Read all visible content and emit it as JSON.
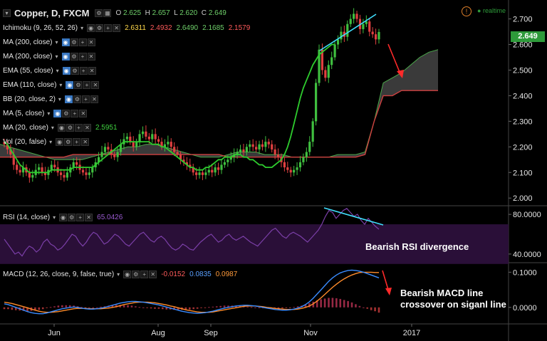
{
  "header": {
    "title": "Copper, D, FXCM",
    "open_label": "O",
    "open": "2.625",
    "high_label": "H",
    "high": "2.657",
    "low_label": "L",
    "low": "2.620",
    "close_label": "C",
    "close": "2.649",
    "realtime": "realtime",
    "last_price": "2.649"
  },
  "indicators": [
    {
      "label": "Ichimoku (9, 26, 52, 26)",
      "values": [
        "2.6311",
        "2.4932",
        "2.6490",
        "2.1685",
        "2.1579"
      ],
      "value_colors": [
        "#ffd84a",
        "#ff5b5b",
        "#6fd06a",
        "#6fd06a",
        "#ff5b5b"
      ]
    },
    {
      "label": "MA (200, close)",
      "values": []
    },
    {
      "label": "MA (200, close)",
      "values": []
    },
    {
      "label": "EMA (55, close)",
      "values": []
    },
    {
      "label": "EMA (110, close)",
      "values": []
    },
    {
      "label": "BB (20, close, 2)",
      "values": []
    },
    {
      "label": "MA (5, close)",
      "values": []
    },
    {
      "label": "MA (20, close)",
      "values": [
        "2.5951"
      ],
      "value_colors": [
        "#3fd23f"
      ]
    },
    {
      "label": "Vol (20, false)",
      "values": []
    }
  ],
  "rsi": {
    "label": "RSI (14, close)",
    "value": "65.0426"
  },
  "macd": {
    "label": "MACD (12, 26, close, 9, false, true)",
    "values": [
      "-0.0152",
      "0.0835",
      "0.0987"
    ],
    "value_colors": [
      "#ff5b5b",
      "#5aa0ff",
      "#ff9a3a"
    ]
  },
  "annotations": {
    "rsi_note": "Bearish RSI divergence",
    "macd_note_line1": "Bearish MACD line",
    "macd_note_line2": "crossover on siganl line"
  },
  "colors": {
    "up": "#3fbf3f",
    "down": "#e04040",
    "ma20": "#2ecc2e",
    "rsi": "#7b3fa8",
    "rsi_band": "#2a0f38",
    "macd": "#3a8cff",
    "signal": "#ff8c2a",
    "cloud": "#6a6a6a",
    "trend": "#40e0ff",
    "arrow": "#ff2a2a"
  },
  "chart_data": [
    {
      "type": "candlestick",
      "title": "Copper, D, FXCM",
      "x_ticks": [
        "Jun",
        "Aug",
        "Sep",
        "Nov",
        "2017"
      ],
      "y_ticks": [
        2.0,
        2.1,
        2.2,
        2.3,
        2.4,
        2.5,
        2.6,
        2.7
      ],
      "ylim": [
        1.97,
        2.76
      ],
      "close_series": [
        2.21,
        2.19,
        2.17,
        2.13,
        2.11,
        2.1,
        2.12,
        2.1,
        2.08,
        2.09,
        2.11,
        2.12,
        2.1,
        2.09,
        2.11,
        2.13,
        2.12,
        2.1,
        2.09,
        2.08,
        2.1,
        2.12,
        2.14,
        2.13,
        2.11,
        2.1,
        2.09,
        2.1,
        2.12,
        2.14,
        2.16,
        2.18,
        2.2,
        2.19,
        2.17,
        2.16,
        2.18,
        2.21,
        2.23,
        2.24,
        2.22,
        2.2,
        2.22,
        2.25,
        2.26,
        2.24,
        2.23,
        2.25,
        2.23,
        2.22,
        2.2,
        2.21,
        2.22,
        2.2,
        2.18,
        2.17,
        2.15,
        2.14,
        2.13,
        2.12,
        2.1,
        2.09,
        2.1,
        2.09,
        2.1,
        2.11,
        2.1,
        2.12,
        2.11,
        2.13,
        2.14,
        2.15,
        2.16,
        2.17,
        2.18,
        2.19,
        2.18,
        2.2,
        2.21,
        2.2,
        2.19,
        2.21,
        2.2,
        2.22,
        2.21,
        2.19,
        2.17,
        2.16,
        2.14,
        2.12,
        2.11,
        2.1,
        2.11,
        2.12,
        2.14,
        2.16,
        2.18,
        2.22,
        2.3,
        2.45,
        2.58,
        2.5,
        2.47,
        2.52,
        2.55,
        2.6,
        2.62,
        2.65,
        2.63,
        2.68,
        2.7,
        2.72,
        2.7,
        2.66,
        2.68,
        2.69,
        2.65,
        2.64,
        2.62,
        2.649
      ],
      "ma20": [
        2.22,
        2.21,
        2.19,
        2.17,
        2.15,
        2.13,
        2.12,
        2.11,
        2.1,
        2.1,
        2.1,
        2.1,
        2.1,
        2.1,
        2.1,
        2.11,
        2.11,
        2.11,
        2.11,
        2.11,
        2.11,
        2.11,
        2.12,
        2.12,
        2.12,
        2.12,
        2.12,
        2.12,
        2.12,
        2.13,
        2.14,
        2.15,
        2.16,
        2.17,
        2.18,
        2.19,
        2.2,
        2.21,
        2.22,
        2.22,
        2.22,
        2.22,
        2.22,
        2.22,
        2.22,
        2.22,
        2.22,
        2.21,
        2.21,
        2.21,
        2.2,
        2.2,
        2.19,
        2.18,
        2.17,
        2.16,
        2.15,
        2.14,
        2.13,
        2.12,
        2.12,
        2.11,
        2.11,
        2.11,
        2.12,
        2.12,
        2.13,
        2.14,
        2.15,
        2.15,
        2.16,
        2.16,
        2.16,
        2.17,
        2.17,
        2.17,
        2.16,
        2.16,
        2.15,
        2.15,
        2.14,
        2.13,
        2.13,
        2.12,
        2.12,
        2.12,
        2.13,
        2.14,
        2.15,
        2.17,
        2.2,
        2.24,
        2.29,
        2.34,
        2.39,
        2.43,
        2.46,
        2.49,
        2.52,
        2.54,
        2.56,
        2.57,
        2.58,
        2.59,
        2.6,
        2.6
      ],
      "senkou_a": [
        2.21,
        2.2,
        2.19,
        2.18,
        2.17,
        2.16,
        2.15,
        2.15,
        2.15,
        2.15,
        2.16,
        2.17,
        2.18,
        2.19,
        2.2,
        2.2,
        2.21,
        2.21,
        2.2,
        2.19,
        2.18,
        2.17,
        2.16,
        2.16,
        2.16,
        2.17,
        2.18,
        2.18,
        2.18,
        2.17,
        2.17,
        2.17,
        2.16,
        2.16,
        2.16,
        2.16,
        2.16,
        2.17,
        2.17,
        2.17,
        2.18,
        2.3,
        2.45,
        2.47,
        2.49,
        2.52,
        2.55,
        2.57,
        2.58
      ],
      "senkou_b": [
        2.16,
        2.16,
        2.16,
        2.16,
        2.16,
        2.16,
        2.16,
        2.16,
        2.17,
        2.17,
        2.17,
        2.17,
        2.17,
        2.17,
        2.17,
        2.17,
        2.17,
        2.17,
        2.17,
        2.17,
        2.17,
        2.17,
        2.17,
        2.17,
        2.17,
        2.16,
        2.16,
        2.16,
        2.16,
        2.16,
        2.16,
        2.16,
        2.16,
        2.16,
        2.16,
        2.16,
        2.16,
        2.16,
        2.16,
        2.16,
        2.17,
        2.3,
        2.4,
        2.4,
        2.42,
        2.42,
        2.42,
        2.42,
        2.42
      ]
    },
    {
      "type": "line",
      "title": "RSI (14, close)",
      "y_ticks": [
        40,
        80
      ],
      "ylim": [
        32,
        88
      ],
      "band": [
        30,
        70
      ],
      "values": [
        55,
        50,
        45,
        40,
        42,
        38,
        44,
        48,
        46,
        42,
        45,
        52,
        55,
        50,
        48,
        44,
        46,
        50,
        55,
        60,
        58,
        52,
        48,
        52,
        58,
        62,
        60,
        55,
        50,
        52,
        56,
        60,
        58,
        54,
        50,
        48,
        52,
        56,
        60,
        62,
        58,
        54,
        52,
        56,
        58,
        55,
        50,
        46,
        44,
        46,
        50,
        48,
        45,
        44,
        48,
        52,
        55,
        58,
        60,
        56,
        52,
        54,
        58,
        60,
        56,
        54,
        56,
        58,
        55,
        52,
        50,
        48,
        52,
        56,
        60,
        64,
        66,
        62,
        58,
        56,
        60,
        62,
        60,
        58,
        55,
        52,
        56,
        60,
        64,
        70,
        78,
        84,
        82,
        76,
        80,
        84,
        86,
        82,
        78,
        80,
        74,
        70,
        76,
        72,
        68,
        65
      ]
    },
    {
      "type": "line",
      "title": "MACD (12, 26, close, 9, false, true)",
      "y_ticks": [
        0.0,
        0.1
      ],
      "ylim": [
        -0.045,
        0.125
      ],
      "macd": [
        0.01,
        0.008,
        0.004,
        0.0,
        -0.004,
        -0.008,
        -0.012,
        -0.015,
        -0.017,
        -0.018,
        -0.018,
        -0.016,
        -0.013,
        -0.01,
        -0.007,
        -0.004,
        -0.002,
        0.0,
        0.001,
        0.0,
        -0.002,
        -0.004,
        -0.005,
        -0.005,
        -0.004,
        -0.002,
        0.0,
        0.003,
        0.006,
        0.009,
        0.012,
        0.014,
        0.016,
        0.017,
        0.017,
        0.016,
        0.015,
        0.013,
        0.011,
        0.009,
        0.007,
        0.004,
        0.001,
        -0.002,
        -0.005,
        -0.008,
        -0.011,
        -0.013,
        -0.015,
        -0.016,
        -0.017,
        -0.016,
        -0.015,
        -0.013,
        -0.011,
        -0.008,
        -0.005,
        -0.002,
        0.0,
        0.002,
        0.004,
        0.005,
        0.006,
        0.006,
        0.005,
        0.004,
        0.002,
        0.0,
        -0.002,
        -0.004,
        -0.006,
        -0.007,
        -0.008,
        -0.008,
        -0.007,
        -0.005,
        -0.002,
        0.002,
        0.008,
        0.016,
        0.026,
        0.038,
        0.05,
        0.062,
        0.074,
        0.084,
        0.092,
        0.098,
        0.102,
        0.105,
        0.106,
        0.105,
        0.103,
        0.1,
        0.096,
        0.092,
        0.088,
        0.084
      ],
      "signal": [
        0.015,
        0.013,
        0.011,
        0.008,
        0.005,
        0.002,
        -0.001,
        -0.005,
        -0.008,
        -0.011,
        -0.013,
        -0.014,
        -0.014,
        -0.013,
        -0.012,
        -0.01,
        -0.008,
        -0.006,
        -0.004,
        -0.003,
        -0.003,
        -0.003,
        -0.004,
        -0.004,
        -0.004,
        -0.004,
        -0.003,
        -0.002,
        0.0,
        0.002,
        0.005,
        0.008,
        0.01,
        0.012,
        0.014,
        0.015,
        0.015,
        0.015,
        0.014,
        0.013,
        0.011,
        0.009,
        0.007,
        0.004,
        0.002,
        -0.001,
        -0.004,
        -0.007,
        -0.009,
        -0.011,
        -0.013,
        -0.014,
        -0.014,
        -0.014,
        -0.013,
        -0.011,
        -0.009,
        -0.007,
        -0.005,
        -0.003,
        -0.001,
        0.001,
        0.003,
        0.004,
        0.004,
        0.004,
        0.003,
        0.002,
        0.0,
        -0.001,
        -0.003,
        -0.004,
        -0.005,
        -0.006,
        -0.006,
        -0.006,
        -0.005,
        -0.003,
        0.0,
        0.004,
        0.01,
        0.018,
        0.027,
        0.037,
        0.047,
        0.057,
        0.066,
        0.074,
        0.081,
        0.087,
        0.092,
        0.096,
        0.099,
        0.1,
        0.1,
        0.1,
        0.099,
        0.099
      ]
    }
  ]
}
